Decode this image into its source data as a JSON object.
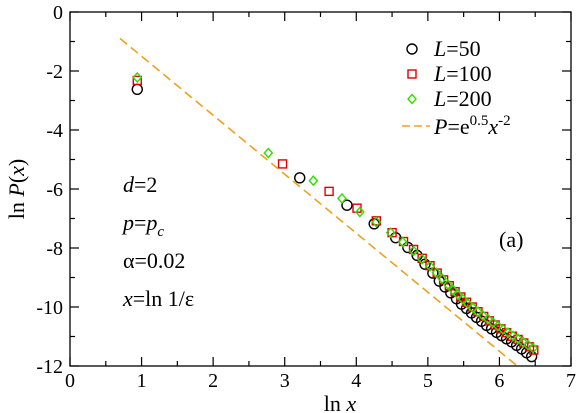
{
  "chart_data": {
    "type": "scatter",
    "xlabel": "ln x",
    "ylabel": "ln P(x)",
    "xlim": [
      0,
      7
    ],
    "ylim": [
      -12,
      0
    ],
    "xticks": [
      "0",
      "1",
      "2",
      "3",
      "4",
      "5",
      "6",
      "7"
    ],
    "yticks": [
      "0",
      "-2",
      "-4",
      "-6",
      "-8",
      "-10",
      "-12"
    ],
    "panel_label": "(a)",
    "legend_position": "top-right",
    "annotations": [
      "d=2",
      "p=p_c",
      "α=0.02",
      "x=ln 1/ε"
    ],
    "series": [
      {
        "name": "L=50",
        "marker": "circle",
        "color": "#000000",
        "points": [
          [
            0.94,
            -2.62
          ],
          [
            3.21,
            -5.62
          ],
          [
            3.87,
            -6.55
          ],
          [
            4.25,
            -7.18
          ],
          [
            4.55,
            -7.65
          ],
          [
            4.72,
            -7.98
          ],
          [
            4.85,
            -8.25
          ],
          [
            4.96,
            -8.55
          ],
          [
            5.07,
            -8.85
          ],
          [
            5.16,
            -9.12
          ],
          [
            5.24,
            -9.32
          ],
          [
            5.32,
            -9.52
          ],
          [
            5.4,
            -9.72
          ],
          [
            5.47,
            -9.9
          ],
          [
            5.54,
            -10.05
          ],
          [
            5.61,
            -10.2
          ],
          [
            5.68,
            -10.35
          ],
          [
            5.75,
            -10.48
          ],
          [
            5.82,
            -10.62
          ],
          [
            5.89,
            -10.74
          ],
          [
            5.96,
            -10.86
          ],
          [
            6.03,
            -10.97
          ],
          [
            6.1,
            -11.08
          ],
          [
            6.17,
            -11.18
          ],
          [
            6.24,
            -11.3
          ],
          [
            6.31,
            -11.42
          ],
          [
            6.38,
            -11.55
          ],
          [
            6.45,
            -11.68
          ]
        ]
      },
      {
        "name": "L=100",
        "marker": "square",
        "color": "#e00000",
        "points": [
          [
            0.94,
            -2.32
          ],
          [
            2.97,
            -5.15
          ],
          [
            3.62,
            -6.08
          ],
          [
            4.01,
            -6.65
          ],
          [
            4.28,
            -7.08
          ],
          [
            4.5,
            -7.48
          ],
          [
            4.66,
            -7.78
          ],
          [
            4.8,
            -8.05
          ],
          [
            4.92,
            -8.35
          ],
          [
            5.03,
            -8.6
          ],
          [
            5.13,
            -8.85
          ],
          [
            5.22,
            -9.08
          ],
          [
            5.3,
            -9.28
          ],
          [
            5.38,
            -9.48
          ],
          [
            5.46,
            -9.66
          ],
          [
            5.54,
            -9.84
          ],
          [
            5.62,
            -10.0
          ],
          [
            5.7,
            -10.16
          ],
          [
            5.78,
            -10.32
          ],
          [
            5.86,
            -10.47
          ],
          [
            5.94,
            -10.61
          ],
          [
            6.02,
            -10.74
          ],
          [
            6.1,
            -10.87
          ],
          [
            6.18,
            -10.99
          ],
          [
            6.26,
            -11.1
          ],
          [
            6.34,
            -11.22
          ],
          [
            6.42,
            -11.35
          ],
          [
            6.48,
            -11.46
          ]
        ]
      },
      {
        "name": "L=200",
        "marker": "diamond",
        "color": "#33dd00",
        "points": [
          [
            0.94,
            -2.22
          ],
          [
            2.77,
            -4.78
          ],
          [
            3.4,
            -5.72
          ],
          [
            3.8,
            -6.32
          ],
          [
            4.05,
            -6.78
          ],
          [
            4.28,
            -7.12
          ],
          [
            4.48,
            -7.48
          ],
          [
            4.65,
            -7.8
          ],
          [
            4.8,
            -8.1
          ],
          [
            4.92,
            -8.38
          ],
          [
            5.03,
            -8.62
          ],
          [
            5.12,
            -8.84
          ],
          [
            5.2,
            -9.04
          ],
          [
            5.28,
            -9.24
          ],
          [
            5.35,
            -9.42
          ],
          [
            5.42,
            -9.58
          ],
          [
            5.49,
            -9.74
          ],
          [
            5.56,
            -9.89
          ],
          [
            5.63,
            -10.03
          ],
          [
            5.7,
            -10.16
          ],
          [
            5.77,
            -10.29
          ],
          [
            5.84,
            -10.41
          ],
          [
            5.91,
            -10.53
          ],
          [
            5.98,
            -10.65
          ],
          [
            6.05,
            -10.76
          ],
          [
            6.12,
            -10.87
          ],
          [
            6.19,
            -10.98
          ],
          [
            6.26,
            -11.08
          ],
          [
            6.33,
            -11.19
          ],
          [
            6.4,
            -11.29
          ],
          [
            6.47,
            -11.4
          ]
        ]
      },
      {
        "name": "P=e^0.5 x^-2",
        "marker": "dashed-line",
        "color": "#f0a020",
        "intercept": 0.5,
        "slope": -2,
        "x_range": [
          0.7,
          6.5
        ]
      }
    ]
  }
}
